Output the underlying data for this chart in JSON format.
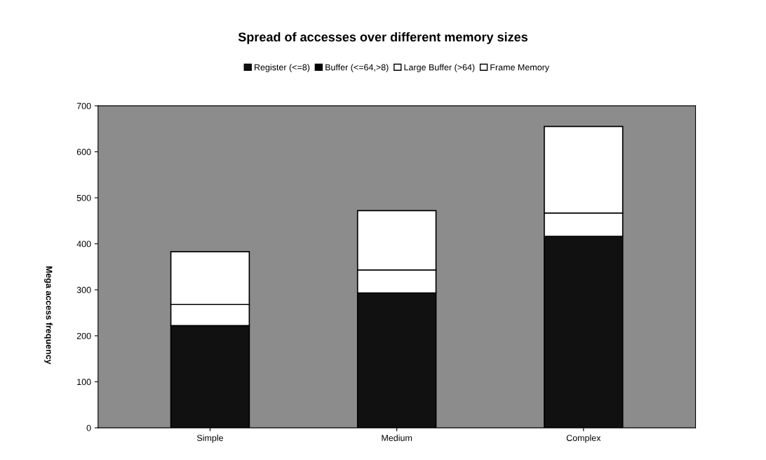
{
  "chart_data": {
    "type": "bar",
    "stacked": true,
    "title": "Spread of accesses over different memory sizes",
    "ylabel": "Mega access frequency",
    "categories": [
      "Simple",
      "Medium",
      "Complex"
    ],
    "series": [
      {
        "name": "Register (<=8)",
        "color": "#111111",
        "values": [
          222,
          293,
          416
        ]
      },
      {
        "name": "Buffer (<=64,>8)",
        "color": "#000000",
        "values": [
          null,
          null,
          null
        ]
      },
      {
        "name": "Large Buffer (>64)",
        "color": "#ffffff",
        "values": [
          46,
          50,
          51
        ]
      },
      {
        "name": "Frame Memory",
        "color": "#ffffff",
        "values": [
          115,
          129,
          188
        ]
      }
    ],
    "ylim": [
      0,
      700
    ],
    "yticks": [
      0,
      100,
      200,
      300,
      400,
      500,
      600,
      700
    ],
    "grid": false,
    "legend": "top"
  }
}
